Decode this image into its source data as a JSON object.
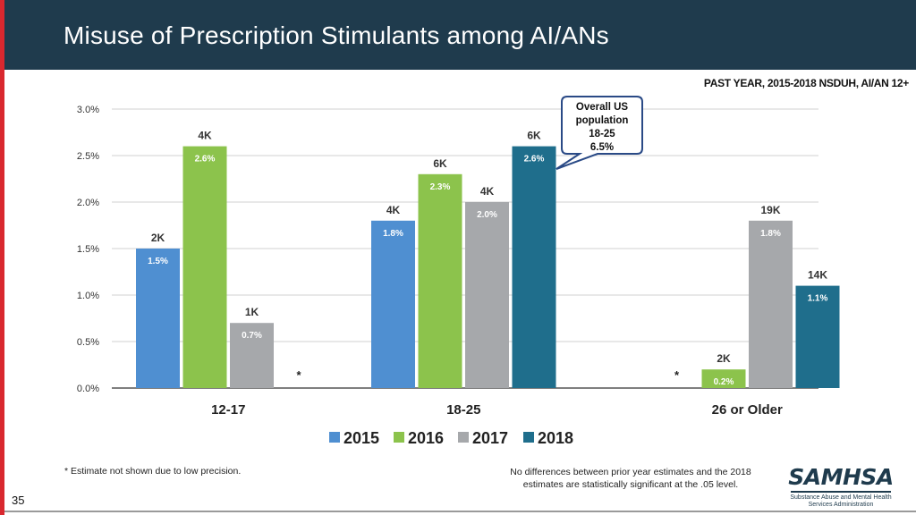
{
  "header": {
    "title": "Misuse of Prescription Stimulants among AI/ANs"
  },
  "subtitle": "PAST YEAR, 2015-2018 NSDUH, AI/AN 12+",
  "footnotes": {
    "left": "* Estimate not shown due to low precision.",
    "right": "No differences between prior year estimates and the 2018 estimates are statistically significant at the .05 level."
  },
  "page_number": "35",
  "logo": {
    "word": "SAMHSA",
    "tagline_1": "Substance Abuse and Mental Health",
    "tagline_2": "Services Administration"
  },
  "colors": {
    "header_bg": "#1f3b4d",
    "accent_stripe": "#d9282f",
    "series": [
      "#4f8fd1",
      "#8cc34c",
      "#a6a8ab",
      "#1f6e8c"
    ]
  },
  "chart_data": {
    "type": "bar",
    "categories": [
      "12-17",
      "18-25",
      "26 or Older"
    ],
    "ylim": [
      0,
      3.0
    ],
    "yticks": [
      0,
      0.5,
      1.0,
      1.5,
      2.0,
      2.5,
      3.0
    ],
    "ytick_labels": [
      "0.0%",
      "0.5%",
      "1.0%",
      "1.5%",
      "2.0%",
      "2.5%",
      "3.0%"
    ],
    "series": [
      {
        "name": "2015",
        "values": [
          1.5,
          1.8,
          null
        ],
        "value_labels": [
          "1.5%",
          "1.8%",
          "*"
        ],
        "count_labels": [
          "2K",
          "4K",
          ""
        ]
      },
      {
        "name": "2016",
        "values": [
          2.6,
          2.3,
          0.2
        ],
        "value_labels": [
          "2.6%",
          "2.3%",
          "0.2%"
        ],
        "count_labels": [
          "4K",
          "6K",
          "2K"
        ]
      },
      {
        "name": "2017",
        "values": [
          0.7,
          2.0,
          1.8
        ],
        "value_labels": [
          "0.7%",
          "2.0%",
          "1.8%"
        ],
        "count_labels": [
          "1K",
          "4K",
          "19K"
        ]
      },
      {
        "name": "2018",
        "values": [
          null,
          2.6,
          1.1
        ],
        "value_labels": [
          "*",
          "2.6%",
          "1.1%"
        ],
        "count_labels": [
          "",
          "6K",
          "14K"
        ]
      }
    ],
    "callout": {
      "lines": [
        "Overall US",
        "population",
        "18-25",
        "6.5%"
      ]
    }
  }
}
